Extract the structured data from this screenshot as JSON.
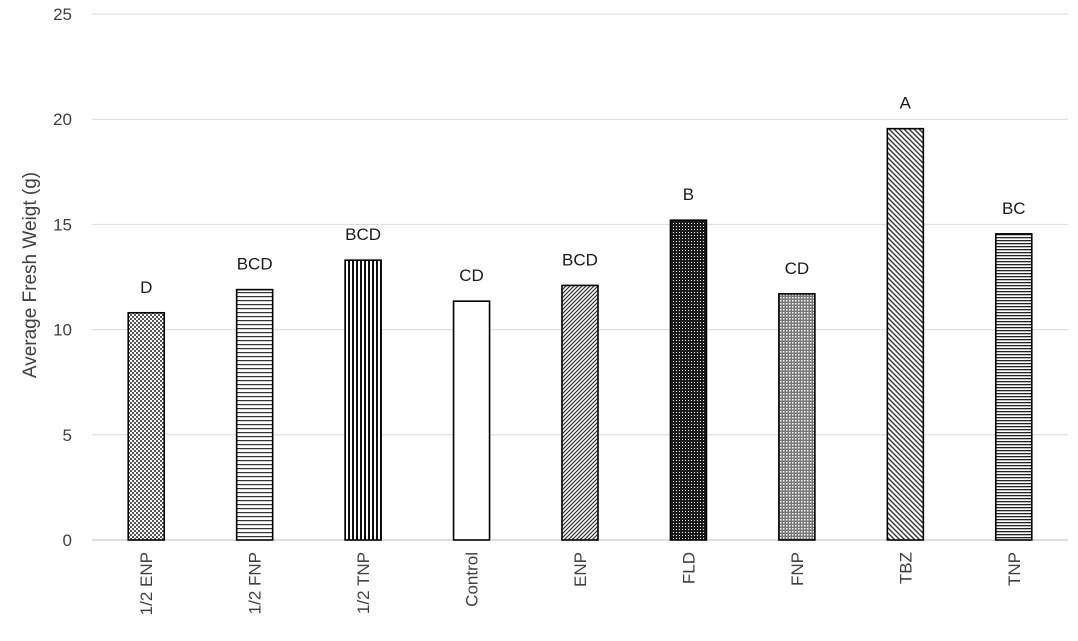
{
  "chart_data": {
    "type": "bar",
    "title": "",
    "xlabel": "",
    "ylabel": "Average Fresh Weigt (g)",
    "ylim": [
      0,
      25
    ],
    "yticks": [
      0,
      5,
      10,
      15,
      20,
      25
    ],
    "grid": true,
    "categories": [
      "1/2 ENP",
      "1/2 FNP",
      "1/2 TNP",
      "Control",
      "ENP",
      "FLD",
      "FNP",
      "TBZ",
      "TNP"
    ],
    "values": [
      10.8,
      11.9,
      13.3,
      11.35,
      12.1,
      15.2,
      11.7,
      19.55,
      14.55
    ],
    "significance_labels": [
      "D",
      "BCD",
      "BCD",
      "CD",
      "BCD",
      "B",
      "CD",
      "A",
      "BC"
    ],
    "patterns": [
      "fine-dots",
      "horizontal-lines",
      "vertical-lines",
      "none",
      "diagonal-fine",
      "dense-dots",
      "medium-dots",
      "diagonal-wide",
      "horizontal-lines-dense"
    ]
  }
}
